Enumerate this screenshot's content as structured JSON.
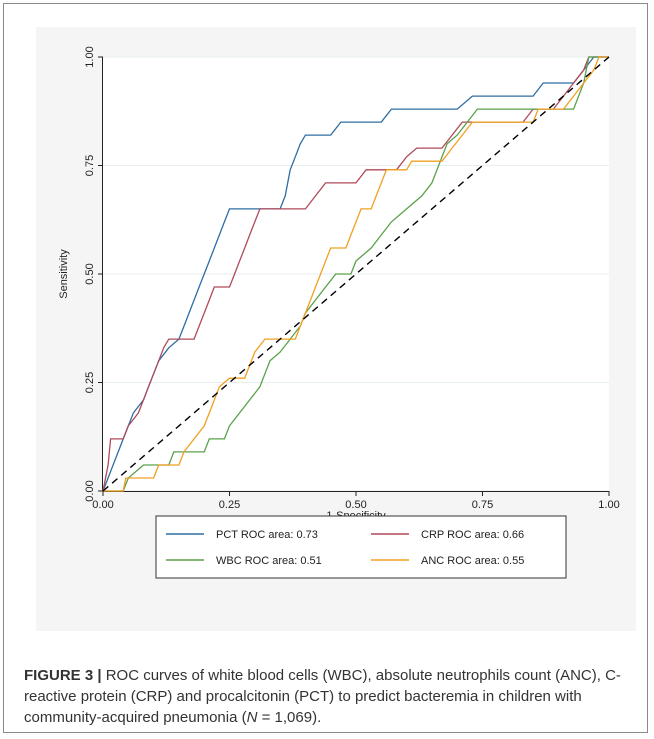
{
  "chart_data": {
    "type": "line",
    "xlabel": "1-Specificity",
    "ylabel": "Sensitivity",
    "xlim": [
      0,
      1
    ],
    "ylim": [
      0,
      1
    ],
    "xticks": [
      "0.00",
      "0.25",
      "0.50",
      "0.75",
      "1.00"
    ],
    "yticks": [
      "0.00",
      "0.25",
      "0.50",
      "0.75",
      "1.00"
    ],
    "grid": true,
    "legend_position": "bottom",
    "reference_line": {
      "style": "dashed",
      "color": "#000000",
      "x": [
        0,
        1
      ],
      "y": [
        0,
        1
      ]
    },
    "series": [
      {
        "name": "PCT ROC area: 0.73",
        "color": "#2e6da4",
        "points": [
          [
            0,
            0
          ],
          [
            0.01,
            0.03
          ],
          [
            0.02,
            0.06
          ],
          [
            0.03,
            0.09
          ],
          [
            0.04,
            0.12
          ],
          [
            0.05,
            0.15
          ],
          [
            0.06,
            0.18
          ],
          [
            0.08,
            0.21
          ],
          [
            0.09,
            0.24
          ],
          [
            0.1,
            0.27
          ],
          [
            0.11,
            0.3
          ],
          [
            0.13,
            0.33
          ],
          [
            0.15,
            0.35
          ],
          [
            0.16,
            0.38
          ],
          [
            0.17,
            0.41
          ],
          [
            0.18,
            0.44
          ],
          [
            0.19,
            0.47
          ],
          [
            0.2,
            0.5
          ],
          [
            0.21,
            0.53
          ],
          [
            0.22,
            0.56
          ],
          [
            0.23,
            0.59
          ],
          [
            0.24,
            0.62
          ],
          [
            0.25,
            0.65
          ],
          [
            0.35,
            0.65
          ],
          [
            0.36,
            0.68
          ],
          [
            0.365,
            0.71
          ],
          [
            0.37,
            0.74
          ],
          [
            0.38,
            0.77
          ],
          [
            0.39,
            0.8
          ],
          [
            0.4,
            0.82
          ],
          [
            0.45,
            0.82
          ],
          [
            0.47,
            0.85
          ],
          [
            0.55,
            0.85
          ],
          [
            0.57,
            0.88
          ],
          [
            0.7,
            0.88
          ],
          [
            0.73,
            0.91
          ],
          [
            0.85,
            0.91
          ],
          [
            0.87,
            0.94
          ],
          [
            0.93,
            0.94
          ],
          [
            0.95,
            0.97
          ],
          [
            0.97,
            1.0
          ],
          [
            1.0,
            1.0
          ]
        ]
      },
      {
        "name": "CRP ROC area: 0.66",
        "color": "#b04a5a",
        "points": [
          [
            0,
            0
          ],
          [
            0.01,
            0.06
          ],
          [
            0.015,
            0.12
          ],
          [
            0.04,
            0.12
          ],
          [
            0.05,
            0.15
          ],
          [
            0.07,
            0.18
          ],
          [
            0.08,
            0.21
          ],
          [
            0.09,
            0.24
          ],
          [
            0.1,
            0.27
          ],
          [
            0.11,
            0.3
          ],
          [
            0.12,
            0.33
          ],
          [
            0.13,
            0.35
          ],
          [
            0.18,
            0.35
          ],
          [
            0.19,
            0.38
          ],
          [
            0.2,
            0.41
          ],
          [
            0.21,
            0.44
          ],
          [
            0.22,
            0.47
          ],
          [
            0.25,
            0.47
          ],
          [
            0.26,
            0.5
          ],
          [
            0.27,
            0.53
          ],
          [
            0.28,
            0.56
          ],
          [
            0.29,
            0.59
          ],
          [
            0.3,
            0.62
          ],
          [
            0.31,
            0.65
          ],
          [
            0.4,
            0.65
          ],
          [
            0.42,
            0.68
          ],
          [
            0.44,
            0.71
          ],
          [
            0.5,
            0.71
          ],
          [
            0.52,
            0.74
          ],
          [
            0.58,
            0.74
          ],
          [
            0.6,
            0.77
          ],
          [
            0.62,
            0.79
          ],
          [
            0.67,
            0.79
          ],
          [
            0.69,
            0.82
          ],
          [
            0.71,
            0.85
          ],
          [
            0.83,
            0.85
          ],
          [
            0.85,
            0.88
          ],
          [
            0.89,
            0.88
          ],
          [
            0.91,
            0.91
          ],
          [
            0.93,
            0.94
          ],
          [
            0.95,
            0.97
          ],
          [
            0.96,
            1.0
          ],
          [
            1.0,
            1.0
          ]
        ]
      },
      {
        "name": "WBC ROC area: 0.51",
        "color": "#5aa04a",
        "points": [
          [
            0,
            0
          ],
          [
            0.04,
            0.0
          ],
          [
            0.05,
            0.03
          ],
          [
            0.08,
            0.06
          ],
          [
            0.13,
            0.06
          ],
          [
            0.14,
            0.09
          ],
          [
            0.2,
            0.09
          ],
          [
            0.21,
            0.12
          ],
          [
            0.24,
            0.12
          ],
          [
            0.25,
            0.15
          ],
          [
            0.27,
            0.18
          ],
          [
            0.29,
            0.21
          ],
          [
            0.31,
            0.24
          ],
          [
            0.32,
            0.27
          ],
          [
            0.33,
            0.3
          ],
          [
            0.35,
            0.32
          ],
          [
            0.37,
            0.35
          ],
          [
            0.39,
            0.38
          ],
          [
            0.4,
            0.41
          ],
          [
            0.42,
            0.44
          ],
          [
            0.44,
            0.47
          ],
          [
            0.46,
            0.5
          ],
          [
            0.49,
            0.5
          ],
          [
            0.5,
            0.53
          ],
          [
            0.53,
            0.56
          ],
          [
            0.55,
            0.59
          ],
          [
            0.57,
            0.62
          ],
          [
            0.6,
            0.65
          ],
          [
            0.63,
            0.68
          ],
          [
            0.65,
            0.71
          ],
          [
            0.66,
            0.74
          ],
          [
            0.67,
            0.77
          ],
          [
            0.68,
            0.8
          ],
          [
            0.7,
            0.82
          ],
          [
            0.72,
            0.85
          ],
          [
            0.74,
            0.88
          ],
          [
            0.93,
            0.88
          ],
          [
            0.95,
            0.94
          ],
          [
            0.96,
            1.0
          ],
          [
            1.0,
            1.0
          ]
        ]
      },
      {
        "name": "ANC ROC area: 0.55",
        "color": "#f0a020",
        "points": [
          [
            0,
            0
          ],
          [
            0.04,
            0.0
          ],
          [
            0.045,
            0.03
          ],
          [
            0.1,
            0.03
          ],
          [
            0.11,
            0.06
          ],
          [
            0.15,
            0.06
          ],
          [
            0.16,
            0.09
          ],
          [
            0.18,
            0.12
          ],
          [
            0.2,
            0.15
          ],
          [
            0.21,
            0.18
          ],
          [
            0.22,
            0.21
          ],
          [
            0.23,
            0.24
          ],
          [
            0.25,
            0.26
          ],
          [
            0.28,
            0.26
          ],
          [
            0.29,
            0.29
          ],
          [
            0.3,
            0.32
          ],
          [
            0.32,
            0.35
          ],
          [
            0.38,
            0.35
          ],
          [
            0.39,
            0.38
          ],
          [
            0.4,
            0.41
          ],
          [
            0.41,
            0.44
          ],
          [
            0.42,
            0.47
          ],
          [
            0.43,
            0.5
          ],
          [
            0.44,
            0.53
          ],
          [
            0.45,
            0.56
          ],
          [
            0.48,
            0.56
          ],
          [
            0.49,
            0.59
          ],
          [
            0.5,
            0.62
          ],
          [
            0.51,
            0.65
          ],
          [
            0.53,
            0.65
          ],
          [
            0.54,
            0.68
          ],
          [
            0.55,
            0.71
          ],
          [
            0.56,
            0.74
          ],
          [
            0.6,
            0.74
          ],
          [
            0.61,
            0.76
          ],
          [
            0.67,
            0.76
          ],
          [
            0.69,
            0.79
          ],
          [
            0.71,
            0.82
          ],
          [
            0.73,
            0.85
          ],
          [
            0.85,
            0.85
          ],
          [
            0.86,
            0.88
          ],
          [
            0.91,
            0.88
          ],
          [
            0.93,
            0.91
          ],
          [
            0.95,
            0.94
          ],
          [
            0.97,
            0.97
          ],
          [
            0.98,
            1.0
          ],
          [
            1.0,
            1.0
          ]
        ]
      }
    ]
  },
  "caption": {
    "figure_label": "FIGURE 3 |",
    "text_before_n": " ROC curves of white blood cells (WBC), absolute neutrophils count (ANC), C-reactive protein (CRP) and procalcitonin (PCT) to predict bacteremia in children with community-acquired pneumonia (",
    "n_symbol": "N",
    "text_after_n": " = 1,069)."
  }
}
